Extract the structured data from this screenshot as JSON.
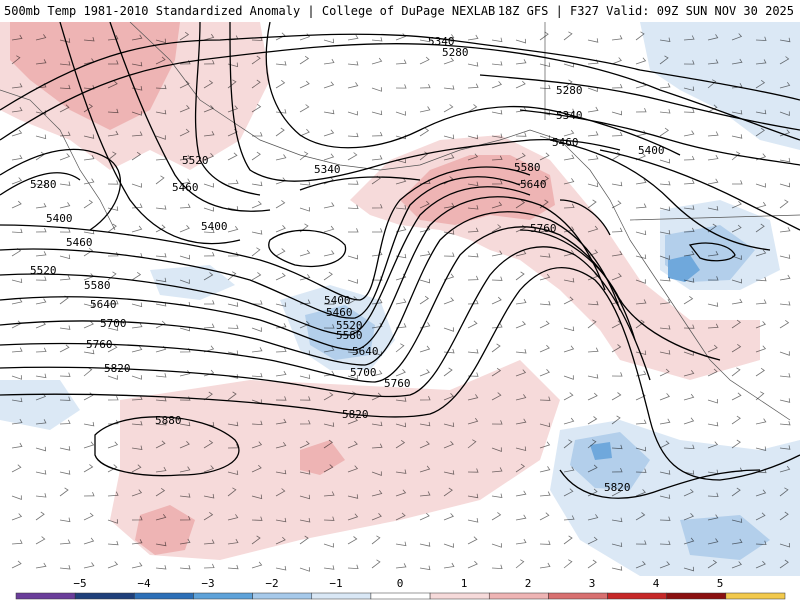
{
  "header": {
    "title_left": "500mb Temp 1981-2010 Standardized Anomaly | College of DuPage NEXLAB",
    "title_right": "18Z GFS | F327 Valid: 09Z SUN NOV 30 2025"
  },
  "colors": {
    "warm_1": "#f6dada",
    "warm_2": "#eeb4b4",
    "warm_3": "#e58f8f",
    "warm_4": "#d34848",
    "cool_1": "#dbe8f5",
    "cool_2": "#b3cfeb",
    "cool_3": "#6fa8dc",
    "cool_4": "#3a86cf",
    "contour": "#000000",
    "coast": "#555555"
  },
  "contours": [
    {
      "label": "5340"
    },
    {
      "label": "5280"
    },
    {
      "label": "5280"
    },
    {
      "label": "5340"
    },
    {
      "label": "5460"
    },
    {
      "label": "5400"
    },
    {
      "label": "5520"
    },
    {
      "label": "5460"
    },
    {
      "label": "5340"
    },
    {
      "label": "5280"
    },
    {
      "label": "5400"
    },
    {
      "label": "5400"
    },
    {
      "label": "5460"
    },
    {
      "label": "5520"
    },
    {
      "label": "5580"
    },
    {
      "label": "5640"
    },
    {
      "label": "5700"
    },
    {
      "label": "5760"
    },
    {
      "label": "5820"
    },
    {
      "label": "5880"
    },
    {
      "label": "5400"
    },
    {
      "label": "5460"
    },
    {
      "label": "5520"
    },
    {
      "label": "5580"
    },
    {
      "label": "5640"
    },
    {
      "label": "5700"
    },
    {
      "label": "5760"
    },
    {
      "label": "5820"
    },
    {
      "label": "5580"
    },
    {
      "label": "5640"
    },
    {
      "label": "5760"
    },
    {
      "label": "5820"
    }
  ],
  "colorbar": {
    "ticks": [
      "−5",
      "−4",
      "−3",
      "−2",
      "−1",
      "0",
      "1",
      "2",
      "3",
      "4",
      "5"
    ],
    "segments": [
      "#6a3d9a",
      "#1f3f7a",
      "#2c6fb7",
      "#5ea2d9",
      "#a6c9ea",
      "#d9e7f5",
      "#ffffff",
      "#f6dada",
      "#eeb4b4",
      "#d87070",
      "#c62828",
      "#8b1010",
      "#f2c94c"
    ]
  }
}
